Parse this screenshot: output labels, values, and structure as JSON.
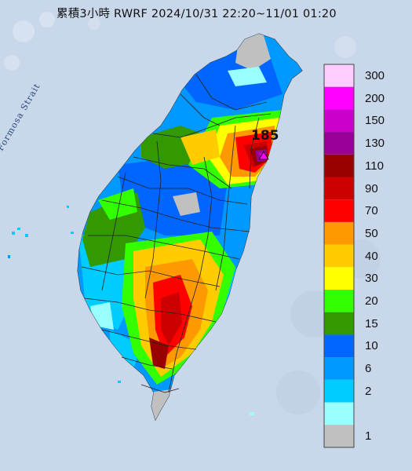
{
  "title": "累積3小時 RWRF 2024/10/31 22:20~11/01 01:20",
  "strait_label": "Formosa Strait",
  "max_value": "185",
  "legend": [
    {
      "label": "300",
      "color": "#ffccff"
    },
    {
      "label": "200",
      "color": "#ff00ff"
    },
    {
      "label": "150",
      "color": "#cc00cc"
    },
    {
      "label": "130",
      "color": "#990099"
    },
    {
      "label": "110",
      "color": "#990000"
    },
    {
      "label": "90",
      "color": "#cc0000"
    },
    {
      "label": "70",
      "color": "#ff0000"
    },
    {
      "label": "50",
      "color": "#ff9900"
    },
    {
      "label": "40",
      "color": "#ffcc00"
    },
    {
      "label": "30",
      "color": "#ffff00"
    },
    {
      "label": "20",
      "color": "#33ff00"
    },
    {
      "label": "15",
      "color": "#339900"
    },
    {
      "label": "10",
      "color": "#0066ff"
    },
    {
      "label": "6",
      "color": "#0099ff"
    },
    {
      "label": "2",
      "color": "#00ccff"
    },
    {
      "label": "",
      "color": "#99ffff"
    },
    {
      "label": "1",
      "color": "#c0c0c0"
    }
  ],
  "colors": {
    "sea": "#c9d7ea",
    "no_rain": "#c0c0c0",
    "county_border": "#222222"
  }
}
